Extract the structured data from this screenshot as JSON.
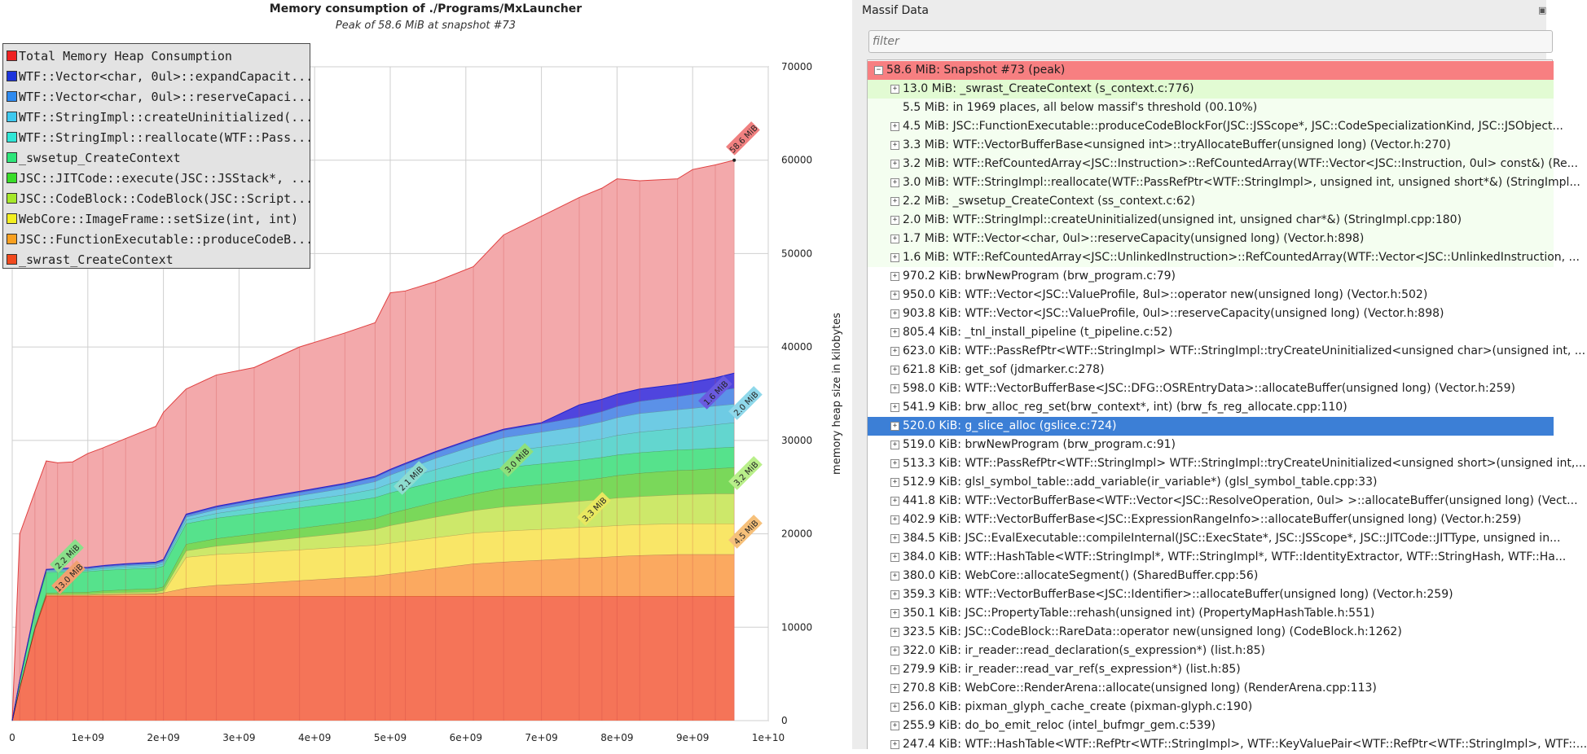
{
  "chart_data": {
    "type": "area",
    "title": "Memory consumption of ./Programs/MxLauncher",
    "subtitle": "Peak of 58.6 MiB at snapshot #73",
    "xlabel": "",
    "ylabel": "memory heap size in kilobytes",
    "xlim": [
      0,
      10000000000
    ],
    "ylim": [
      0,
      70000
    ],
    "x_tick_labels": [
      "0",
      "1e+09",
      "2e+09",
      "3e+09",
      "4e+09",
      "5e+09",
      "6e+09",
      "7e+09",
      "8e+09",
      "9e+09",
      "1e+10"
    ],
    "y_tick_labels": [
      "0",
      "10000",
      "20000",
      "30000",
      "40000",
      "50000",
      "60000",
      "70000"
    ],
    "grid": true,
    "legend_position": "top-left",
    "x": [
      0,
      100000000,
      300000000,
      450000000,
      600000000,
      800000000,
      1000000000,
      1200000000,
      1500000000,
      1900000000,
      2000000000,
      2300000000,
      2700000000,
      3200000000,
      3800000000,
      4400000000,
      4800000000,
      5000000000,
      5200000000,
      5600000000,
      6100000000,
      6500000000,
      7000000000,
      7500000000,
      7800000000,
      8000000000,
      8300000000,
      8800000000,
      9000000000,
      9300000000,
      9550000000
    ],
    "series": [
      {
        "name": "_swrast_CreateContext",
        "color": "#f57458",
        "values": [
          0,
          3500,
          9800,
          13300,
          13300,
          13300,
          13300,
          13300,
          13300,
          13300,
          13300,
          13300,
          13300,
          13300,
          13300,
          13300,
          13300,
          13300,
          13300,
          13300,
          13300,
          13300,
          13300,
          13300,
          13300,
          13300,
          13300,
          13300,
          13300,
          13300,
          13300
        ]
      },
      {
        "name": "JSC::FunctionExecutable::produceCodeB...",
        "color": "#fba960",
        "values": [
          0,
          50,
          100,
          150,
          150,
          150,
          150,
          200,
          250,
          300,
          400,
          900,
          1200,
          1400,
          1700,
          2000,
          2200,
          2400,
          2600,
          3000,
          3500,
          3700,
          3900,
          4100,
          4200,
          4300,
          4400,
          4500,
          4500,
          4500,
          4500
        ]
      },
      {
        "name": "WebCore::ImageFrame::setSize(int, int)",
        "color": "#f9e667",
        "values": [
          0,
          0,
          0,
          0,
          0,
          0,
          0,
          0,
          0,
          0,
          0,
          3300,
          3300,
          3300,
          3300,
          3300,
          3300,
          3300,
          3300,
          3300,
          3300,
          3300,
          3300,
          3300,
          3300,
          3300,
          3300,
          3300,
          3300,
          3300,
          3300
        ]
      },
      {
        "name": "JSC::CodeBlock::CodeBlock(JSC::Script...",
        "color": "#cde86a",
        "values": [
          0,
          30,
          60,
          80,
          90,
          100,
          120,
          150,
          180,
          200,
          250,
          700,
          900,
          1100,
          1300,
          1500,
          1700,
          1900,
          2000,
          2200,
          2400,
          2600,
          2700,
          2800,
          2900,
          2950,
          3000,
          3100,
          3150,
          3200,
          3200
        ]
      },
      {
        "name": "JSC::JITCode::execute(JSC::JSStack*, ...",
        "color": "#7ad85a",
        "values": [
          0,
          50,
          100,
          150,
          170,
          190,
          200,
          250,
          300,
          350,
          400,
          700,
          800,
          900,
          1000,
          1100,
          1200,
          1300,
          1400,
          1600,
          1800,
          2000,
          2100,
          2200,
          2300,
          2400,
          2500,
          2600,
          2600,
          2700,
          2800
        ]
      },
      {
        "name": "_swsetup_CreateContext",
        "color": "#56e28c",
        "values": [
          0,
          600,
          1600,
          2200,
          2200,
          2200,
          2200,
          2200,
          2200,
          2200,
          2200,
          2200,
          2200,
          2200,
          2200,
          2200,
          2200,
          2200,
          2200,
          2200,
          2200,
          2200,
          2200,
          2200,
          2200,
          2200,
          2200,
          2200,
          2200,
          2200,
          2200
        ]
      },
      {
        "name": "WTF::StringImpl::reallocate(WTF::Pass...",
        "color": "#63d6cf",
        "values": [
          0,
          50,
          100,
          120,
          130,
          150,
          160,
          180,
          200,
          220,
          250,
          400,
          500,
          600,
          700,
          800,
          900,
          1000,
          1100,
          1300,
          1500,
          1700,
          1800,
          1900,
          2000,
          2100,
          2200,
          2300,
          2400,
          2500,
          2600
        ]
      },
      {
        "name": "WTF::StringImpl::createUninitialized(...",
        "color": "#6ecbe4",
        "values": [
          0,
          30,
          60,
          80,
          90,
          100,
          110,
          130,
          150,
          170,
          200,
          300,
          400,
          500,
          600,
          700,
          800,
          900,
          1000,
          1200,
          1400,
          1500,
          1600,
          1700,
          1800,
          1900,
          2000,
          2000,
          2000,
          2000,
          2000
        ]
      },
      {
        "name": "WTF::Vector<char, 0ul>::reserveCapaci...",
        "color": "#5b91e8",
        "values": [
          0,
          30,
          60,
          80,
          90,
          100,
          110,
          120,
          130,
          140,
          150,
          200,
          250,
          300,
          350,
          400,
          450,
          500,
          550,
          600,
          700,
          800,
          900,
          1000,
          1100,
          1200,
          1300,
          1400,
          1500,
          1600,
          1700
        ]
      },
      {
        "name": "WTF::Vector<char, 0ul>::expandCapacit...",
        "color": "#4f45de",
        "values": [
          0,
          10,
          20,
          30,
          40,
          50,
          60,
          70,
          80,
          90,
          100,
          100,
          100,
          100,
          100,
          100,
          100,
          100,
          100,
          100,
          100,
          100,
          100,
          1300,
          1300,
          1300,
          1300,
          1300,
          1300,
          1400,
          1600
        ]
      },
      {
        "name": "Total Memory Heap Consumption",
        "color": "#f3a9ab",
        "values": [
          0,
          20000,
          24500,
          27800,
          27600,
          27700,
          28600,
          29200,
          30200,
          31500,
          33000,
          35500,
          37000,
          37800,
          40000,
          41500,
          42600,
          45800,
          46000,
          47000,
          48600,
          52000,
          54000,
          56000,
          57000,
          58000,
          57800,
          58000,
          59000,
          59500,
          60000
        ]
      }
    ],
    "annotations": [
      "58.6 MiB",
      "1.6 MiB",
      "2.0 MiB",
      "3.2 MiB",
      "4.5 MiB",
      "3.0 MiB",
      "2.1 MiB",
      "3.3 MiB",
      "2.2 MiB",
      "13.0 MiB"
    ]
  },
  "massif": {
    "header": "Massif Data",
    "float_icon": "float-window-icon",
    "filter_placeholder": "filter",
    "rows": [
      {
        "text": "58.6 MiB: Snapshot #73 (peak)",
        "expander": "−",
        "style": "peak",
        "indent": 0
      },
      {
        "text": "13.0 MiB: _swrast_CreateContext (s_context.c:776)",
        "expander": "+",
        "style": "green",
        "indent": 1
      },
      {
        "text": "5.5 MiB: in 1969 places, all below massif's threshold (00.10%)",
        "expander": "",
        "style": "light",
        "indent": 1
      },
      {
        "text": "4.5 MiB: JSC::FunctionExecutable::produceCodeBlockFor(JSC::JSScope*, JSC::CodeSpecializationKind, JSC::JSObject...",
        "expander": "+",
        "style": "light",
        "indent": 1
      },
      {
        "text": "3.3 MiB: WTF::VectorBufferBase<unsigned int>::tryAllocateBuffer(unsigned long) (Vector.h:270)",
        "expander": "+",
        "style": "light",
        "indent": 1
      },
      {
        "text": "3.2 MiB: WTF::RefCountedArray<JSC::Instruction>::RefCountedArray(WTF::Vector<JSC::Instruction, 0ul> const&) (Re...",
        "expander": "+",
        "style": "light",
        "indent": 1
      },
      {
        "text": "3.0 MiB: WTF::StringImpl::reallocate(WTF::PassRefPtr<WTF::StringImpl>, unsigned int, unsigned short*&) (StringImpl...",
        "expander": "+",
        "style": "light",
        "indent": 1
      },
      {
        "text": "2.2 MiB: _swsetup_CreateContext (ss_context.c:62)",
        "expander": "+",
        "style": "light",
        "indent": 1
      },
      {
        "text": "2.0 MiB: WTF::StringImpl::createUninitialized(unsigned int, unsigned char*&) (StringImpl.cpp:180)",
        "expander": "+",
        "style": "light",
        "indent": 1
      },
      {
        "text": "1.7 MiB: WTF::Vector<char, 0ul>::reserveCapacity(unsigned long) (Vector.h:898)",
        "expander": "+",
        "style": "light",
        "indent": 1
      },
      {
        "text": "1.6 MiB: WTF::RefCountedArray<JSC::UnlinkedInstruction>::RefCountedArray(WTF::Vector<JSC::UnlinkedInstruction, ...",
        "expander": "+",
        "style": "light",
        "indent": 1
      },
      {
        "text": "970.2 KiB: brwNewProgram (brw_program.c:79)",
        "expander": "+",
        "style": "plain",
        "indent": 1
      },
      {
        "text": "950.0 KiB: WTF::Vector<JSC::ValueProfile, 8ul>::operator new(unsigned long) (Vector.h:502)",
        "expander": "+",
        "style": "plain",
        "indent": 1
      },
      {
        "text": "903.8 KiB: WTF::Vector<JSC::ValueProfile, 0ul>::reserveCapacity(unsigned long) (Vector.h:898)",
        "expander": "+",
        "style": "plain",
        "indent": 1
      },
      {
        "text": "805.4 KiB: _tnl_install_pipeline (t_pipeline.c:52)",
        "expander": "+",
        "style": "plain",
        "indent": 1
      },
      {
        "text": "623.0 KiB: WTF::PassRefPtr<WTF::StringImpl> WTF::StringImpl::tryCreateUninitialized<unsigned char>(unsigned int, ...",
        "expander": "+",
        "style": "plain",
        "indent": 1
      },
      {
        "text": "621.8 KiB: get_sof (jdmarker.c:278)",
        "expander": "+",
        "style": "plain",
        "indent": 1
      },
      {
        "text": "598.0 KiB: WTF::VectorBufferBase<JSC::DFG::OSREntryData>::allocateBuffer(unsigned long) (Vector.h:259)",
        "expander": "+",
        "style": "plain",
        "indent": 1
      },
      {
        "text": "541.9 KiB: brw_alloc_reg_set(brw_context*, int) (brw_fs_reg_allocate.cpp:110)",
        "expander": "+",
        "style": "plain",
        "indent": 1
      },
      {
        "text": "520.0 KiB: g_slice_alloc (gslice.c:724)",
        "expander": "+",
        "style": "selected",
        "indent": 1
      },
      {
        "text": "519.0 KiB: brwNewProgram (brw_program.c:91)",
        "expander": "+",
        "style": "plain",
        "indent": 1
      },
      {
        "text": "513.3 KiB: WTF::PassRefPtr<WTF::StringImpl> WTF::StringImpl::tryCreateUninitialized<unsigned short>(unsigned int,...",
        "expander": "+",
        "style": "plain",
        "indent": 1
      },
      {
        "text": "512.9 KiB: glsl_symbol_table::add_variable(ir_variable*) (glsl_symbol_table.cpp:33)",
        "expander": "+",
        "style": "plain",
        "indent": 1
      },
      {
        "text": "441.8 KiB: WTF::VectorBufferBase<WTF::Vector<JSC::ResolveOperation, 0ul> >::allocateBuffer(unsigned long) (Vect...",
        "expander": "+",
        "style": "plain",
        "indent": 1
      },
      {
        "text": "402.9 KiB: WTF::VectorBufferBase<JSC::ExpressionRangeInfo>::allocateBuffer(unsigned long) (Vector.h:259)",
        "expander": "+",
        "style": "plain",
        "indent": 1
      },
      {
        "text": "384.5 KiB: JSC::EvalExecutable::compileInternal(JSC::ExecState*, JSC::JSScope*, JSC::JITCode::JITType, unsigned in...",
        "expander": "+",
        "style": "plain",
        "indent": 1
      },
      {
        "text": "384.0 KiB: WTF::HashTable<WTF::StringImpl*, WTF::StringImpl*, WTF::IdentityExtractor, WTF::StringHash, WTF::Ha...",
        "expander": "+",
        "style": "plain",
        "indent": 1
      },
      {
        "text": "380.0 KiB: WebCore::allocateSegment() (SharedBuffer.cpp:56)",
        "expander": "+",
        "style": "plain",
        "indent": 1
      },
      {
        "text": "359.3 KiB: WTF::VectorBufferBase<JSC::Identifier>::allocateBuffer(unsigned long) (Vector.h:259)",
        "expander": "+",
        "style": "plain",
        "indent": 1
      },
      {
        "text": "350.1 KiB: JSC::PropertyTable::rehash(unsigned int) (PropertyMapHashTable.h:551)",
        "expander": "+",
        "style": "plain",
        "indent": 1
      },
      {
        "text": "323.5 KiB: JSC::CodeBlock::RareData::operator new(unsigned long) (CodeBlock.h:1262)",
        "expander": "+",
        "style": "plain",
        "indent": 1
      },
      {
        "text": "322.0 KiB: ir_reader::read_declaration(s_expression*) (list.h:85)",
        "expander": "+",
        "style": "plain",
        "indent": 1
      },
      {
        "text": "279.9 KiB: ir_reader::read_var_ref(s_expression*) (list.h:85)",
        "expander": "+",
        "style": "plain",
        "indent": 1
      },
      {
        "text": "270.8 KiB: WebCore::RenderArena::allocate(unsigned long) (RenderArena.cpp:113)",
        "expander": "+",
        "style": "plain",
        "indent": 1
      },
      {
        "text": "256.0 KiB: pixman_glyph_cache_create (pixman-glyph.c:190)",
        "expander": "+",
        "style": "plain",
        "indent": 1
      },
      {
        "text": "255.9 KiB: do_bo_emit_reloc (intel_bufmgr_gem.c:539)",
        "expander": "+",
        "style": "plain",
        "indent": 1
      },
      {
        "text": "247.4 KiB: WTF::HashTable<WTF::RefPtr<WTF::StringImpl>, WTF::KeyValuePair<WTF::RefPtr<WTF::StringImpl>, WTF::...",
        "expander": "+",
        "style": "plain",
        "indent": 1
      }
    ]
  },
  "colors": {
    "peak_row": "#f77f81",
    "green_row": "#e2fbd3",
    "light_row": "#f4fef0",
    "selected_row": "#3c7fd6",
    "selected_text": "#ffffff",
    "pane_bg": "#ececec"
  }
}
